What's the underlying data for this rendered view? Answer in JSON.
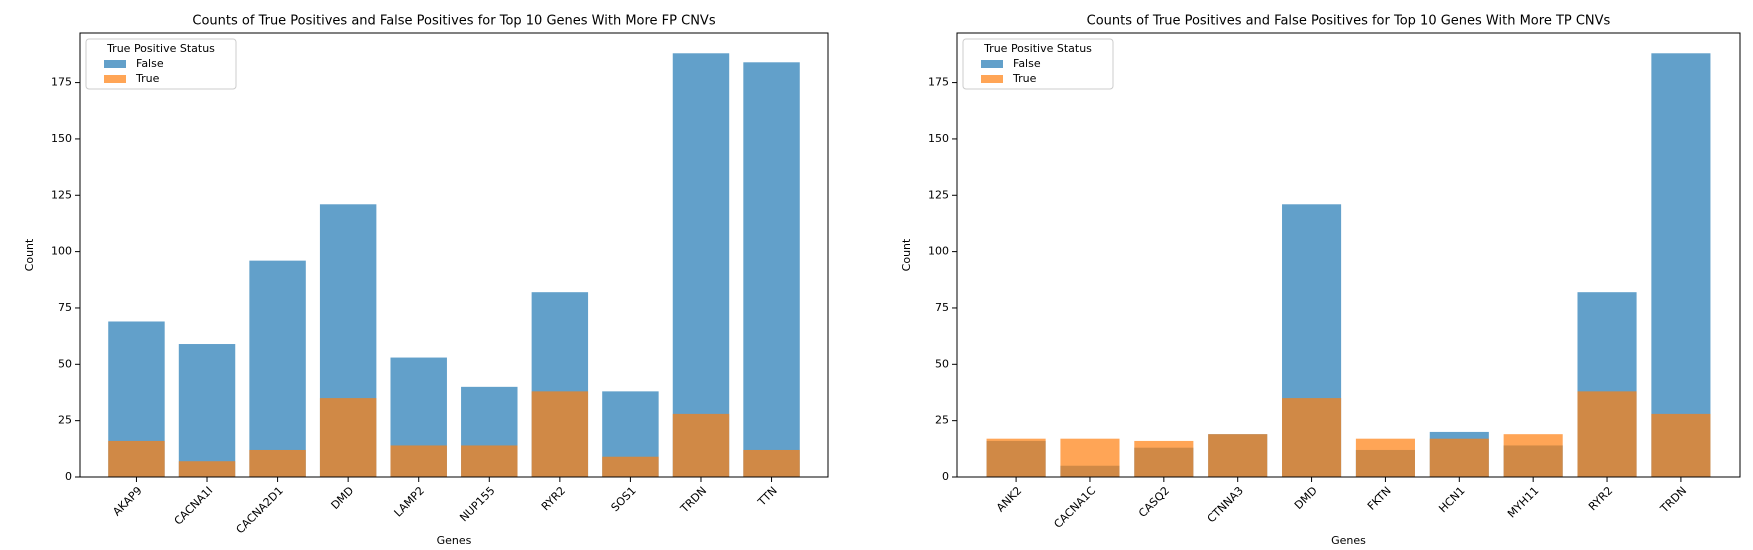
{
  "chart_data": [
    {
      "type": "bar",
      "title": "Counts of True Positives and False Positives for Top 10 Genes With More FP CNVs",
      "xlabel": "Genes",
      "ylabel": "Count",
      "categories": [
        "AKAP9",
        "CACNA1I",
        "CACNA2D1",
        "DMD",
        "LAMP2",
        "NUP155",
        "RYR2",
        "SOS1",
        "TRDN",
        "TTN"
      ],
      "series": [
        {
          "name": "False",
          "color": "#1f77b4",
          "values": [
            69,
            59,
            96,
            121,
            53,
            40,
            82,
            38,
            188,
            184
          ]
        },
        {
          "name": "True",
          "color": "#ff7f0e",
          "values": [
            16,
            7,
            12,
            35,
            14,
            14,
            38,
            9,
            28,
            12
          ]
        }
      ],
      "ylim": [
        0,
        197
      ],
      "yticks": [
        0,
        25,
        50,
        75,
        100,
        125,
        150,
        175
      ],
      "legend_title": "True Positive Status",
      "legend": "upper left"
    },
    {
      "type": "bar",
      "title": "Counts of True Positives and False Positives for Top 10 Genes With More TP CNVs",
      "xlabel": "Genes",
      "ylabel": "Count",
      "categories": [
        "ANK2",
        "CACNA1C",
        "CASQ2",
        "CTNNA3",
        "DMD",
        "FKTN",
        "HCN1",
        "MYH11",
        "RYR2",
        "TRDN"
      ],
      "series": [
        {
          "name": "False",
          "color": "#1f77b4",
          "values": [
            16,
            5,
            13,
            19,
            121,
            12,
            20,
            14,
            82,
            188
          ]
        },
        {
          "name": "True",
          "color": "#ff7f0e",
          "values": [
            17,
            17,
            16,
            19,
            35,
            17,
            17,
            19,
            38,
            28
          ]
        }
      ],
      "ylim": [
        0,
        197
      ],
      "yticks": [
        0,
        25,
        50,
        75,
        100,
        125,
        150,
        175
      ],
      "legend_title": "True Positive Status",
      "legend": "upper left"
    }
  ]
}
